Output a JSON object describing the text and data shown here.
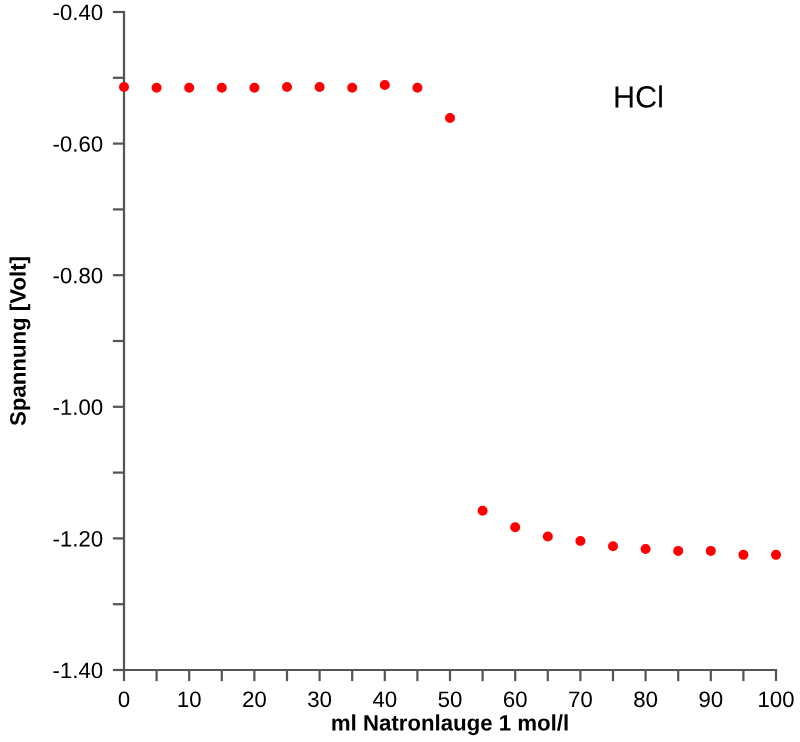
{
  "chart_data": {
    "type": "scatter",
    "xlabel": "ml Natronlauge 1 mol/l",
    "ylabel": "Spannung [Volt]",
    "annotations": [
      "HCl"
    ],
    "x": [
      0,
      5,
      10,
      15,
      20,
      25,
      30,
      35,
      40,
      45,
      50,
      55,
      60,
      65,
      70,
      75,
      80,
      85,
      90,
      95,
      100
    ],
    "series": [
      {
        "color": "#ff0000",
        "values": [
          -0.514,
          -0.515,
          -0.515,
          -0.515,
          -0.515,
          -0.514,
          -0.514,
          -0.515,
          -0.511,
          -0.515,
          -0.561,
          -1.158,
          -1.183,
          -1.197,
          -1.204,
          -1.212,
          -1.216,
          -1.219,
          -1.219,
          -1.225,
          -1.225
        ]
      }
    ],
    "marker": "circle",
    "grid": false,
    "legend": false,
    "xlim": [
      0,
      100
    ],
    "ylim": [
      -1.4,
      -0.4
    ],
    "xticks": [
      0,
      {
        "value": 5,
        "label": null
      },
      10,
      {
        "value": 15,
        "label": null
      },
      20,
      {
        "value": 25,
        "label": null
      },
      30,
      {
        "value": 35,
        "label": null
      },
      40,
      {
        "value": 45,
        "label": null
      },
      50,
      {
        "value": 55,
        "label": null
      },
      60,
      {
        "value": 65,
        "label": null
      },
      70,
      {
        "value": 75,
        "label": null
      },
      80,
      {
        "value": 85,
        "label": null
      },
      90,
      {
        "value": 95,
        "label": null
      },
      100
    ],
    "yticks": [
      {
        "value": -1.4,
        "label": "-1.40"
      },
      {
        "value": -1.3,
        "label": null
      },
      {
        "value": -1.2,
        "label": "-1.20"
      },
      {
        "value": -1.1,
        "label": null
      },
      {
        "value": -1.0,
        "label": "-1.00"
      },
      {
        "value": -0.9,
        "label": null
      },
      {
        "value": -0.8,
        "label": "-0.80"
      },
      {
        "value": -0.7,
        "label": null
      },
      {
        "value": -0.6,
        "label": "-0.60"
      },
      {
        "value": -0.5,
        "label": null
      },
      {
        "value": -0.4,
        "label": "-0.40"
      }
    ]
  }
}
